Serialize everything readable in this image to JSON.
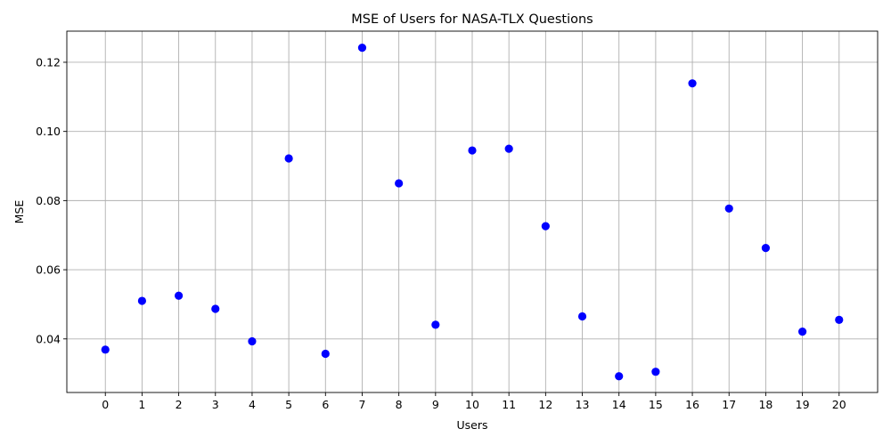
{
  "chart_data": {
    "type": "scatter",
    "title": "MSE of Users for NASA-TLX Questions",
    "xlabel": "Users",
    "ylabel": "MSE",
    "x": [
      0,
      1,
      2,
      3,
      4,
      5,
      6,
      7,
      8,
      9,
      10,
      11,
      12,
      13,
      14,
      15,
      16,
      17,
      18,
      19,
      20
    ],
    "x_tick_labels": [
      "0",
      "1",
      "2",
      "3",
      "4",
      "5",
      "6",
      "7",
      "8",
      "9",
      "10",
      "11",
      "12",
      "13",
      "14",
      "15",
      "16",
      "17",
      "18",
      "19",
      "20"
    ],
    "y": [
      0.0369,
      0.051,
      0.0525,
      0.0487,
      0.0393,
      0.0922,
      0.0357,
      0.1242,
      0.085,
      0.0441,
      0.0945,
      0.095,
      0.0726,
      0.0465,
      0.0292,
      0.0305,
      0.1139,
      0.0777,
      0.0663,
      0.0421,
      0.0455
    ],
    "y_ticks": [
      0.04,
      0.06,
      0.08,
      0.1,
      0.12
    ],
    "y_tick_labels": [
      "0.04",
      "0.06",
      "0.08",
      "0.10",
      "0.12"
    ],
    "xlim": [
      -1.05,
      21.05
    ],
    "ylim": [
      0.0245,
      0.129
    ],
    "grid": true,
    "marker_color": "#0000ff"
  }
}
